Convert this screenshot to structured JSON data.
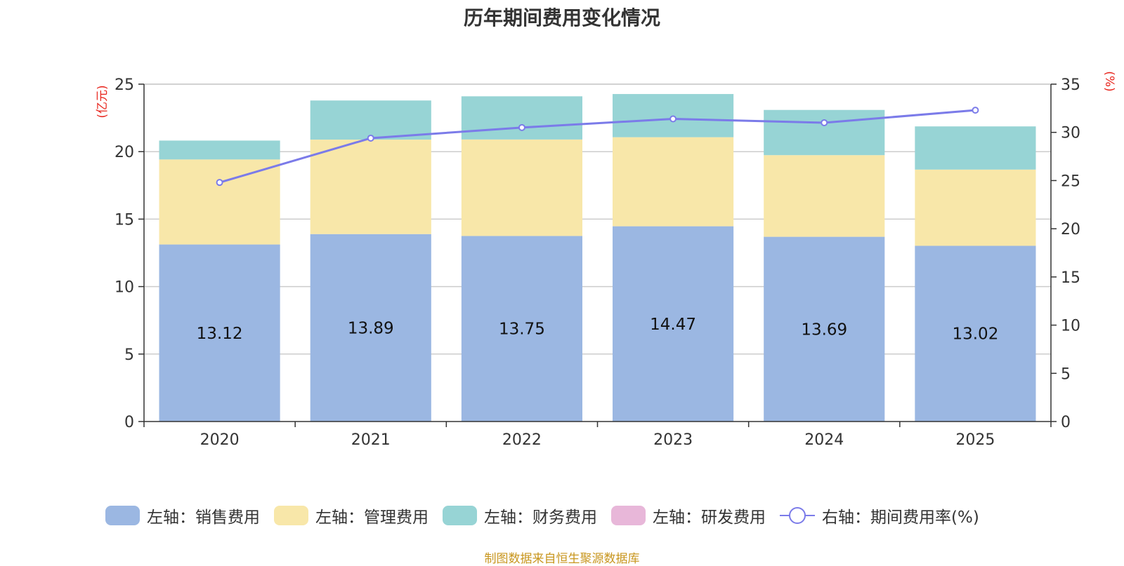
{
  "chart_data": {
    "type": "bar",
    "stacked": true,
    "title": "历年期间费用变化情况",
    "categories": [
      "2020",
      "2021",
      "2022",
      "2023",
      "2024",
      "2025"
    ],
    "left_axis": {
      "label": "(亿元)",
      "ylim": [
        0,
        25
      ],
      "ticks": [
        0,
        5,
        10,
        15,
        20,
        25
      ]
    },
    "right_axis": {
      "label": "(%)",
      "ylim": [
        0,
        35
      ],
      "ticks": [
        0,
        5,
        10,
        15,
        20,
        25,
        30,
        35
      ]
    },
    "series": [
      {
        "name": "左轴：销售费用",
        "axis": "left",
        "kind": "bar",
        "color": "#9bb7e2",
        "values": [
          13.12,
          13.89,
          13.75,
          14.47,
          13.69,
          13.02
        ],
        "labels": [
          "13.12",
          "13.89",
          "13.75",
          "14.47",
          "13.69",
          "13.02"
        ]
      },
      {
        "name": "左轴：管理费用",
        "axis": "left",
        "kind": "bar",
        "color": "#f8e7a9",
        "values": [
          6.3,
          7.0,
          7.15,
          6.6,
          6.05,
          5.65
        ]
      },
      {
        "name": "左轴：财务费用",
        "axis": "left",
        "kind": "bar",
        "color": "#97d4d5",
        "values": [
          1.4,
          2.9,
          3.2,
          3.2,
          3.35,
          3.2
        ]
      },
      {
        "name": "左轴：研发费用",
        "axis": "left",
        "kind": "bar",
        "color": "#e8b7d9",
        "values": [
          0,
          0,
          0,
          0,
          0,
          0
        ]
      },
      {
        "name": "右轴：期间费用率(%)",
        "axis": "right",
        "kind": "line",
        "color": "#7b7be9",
        "values": [
          24.8,
          29.4,
          30.5,
          31.4,
          31.0,
          32.3
        ]
      }
    ],
    "legend_position": "bottom",
    "grid": true
  },
  "source_note": "制图数据来自恒生聚源数据库"
}
